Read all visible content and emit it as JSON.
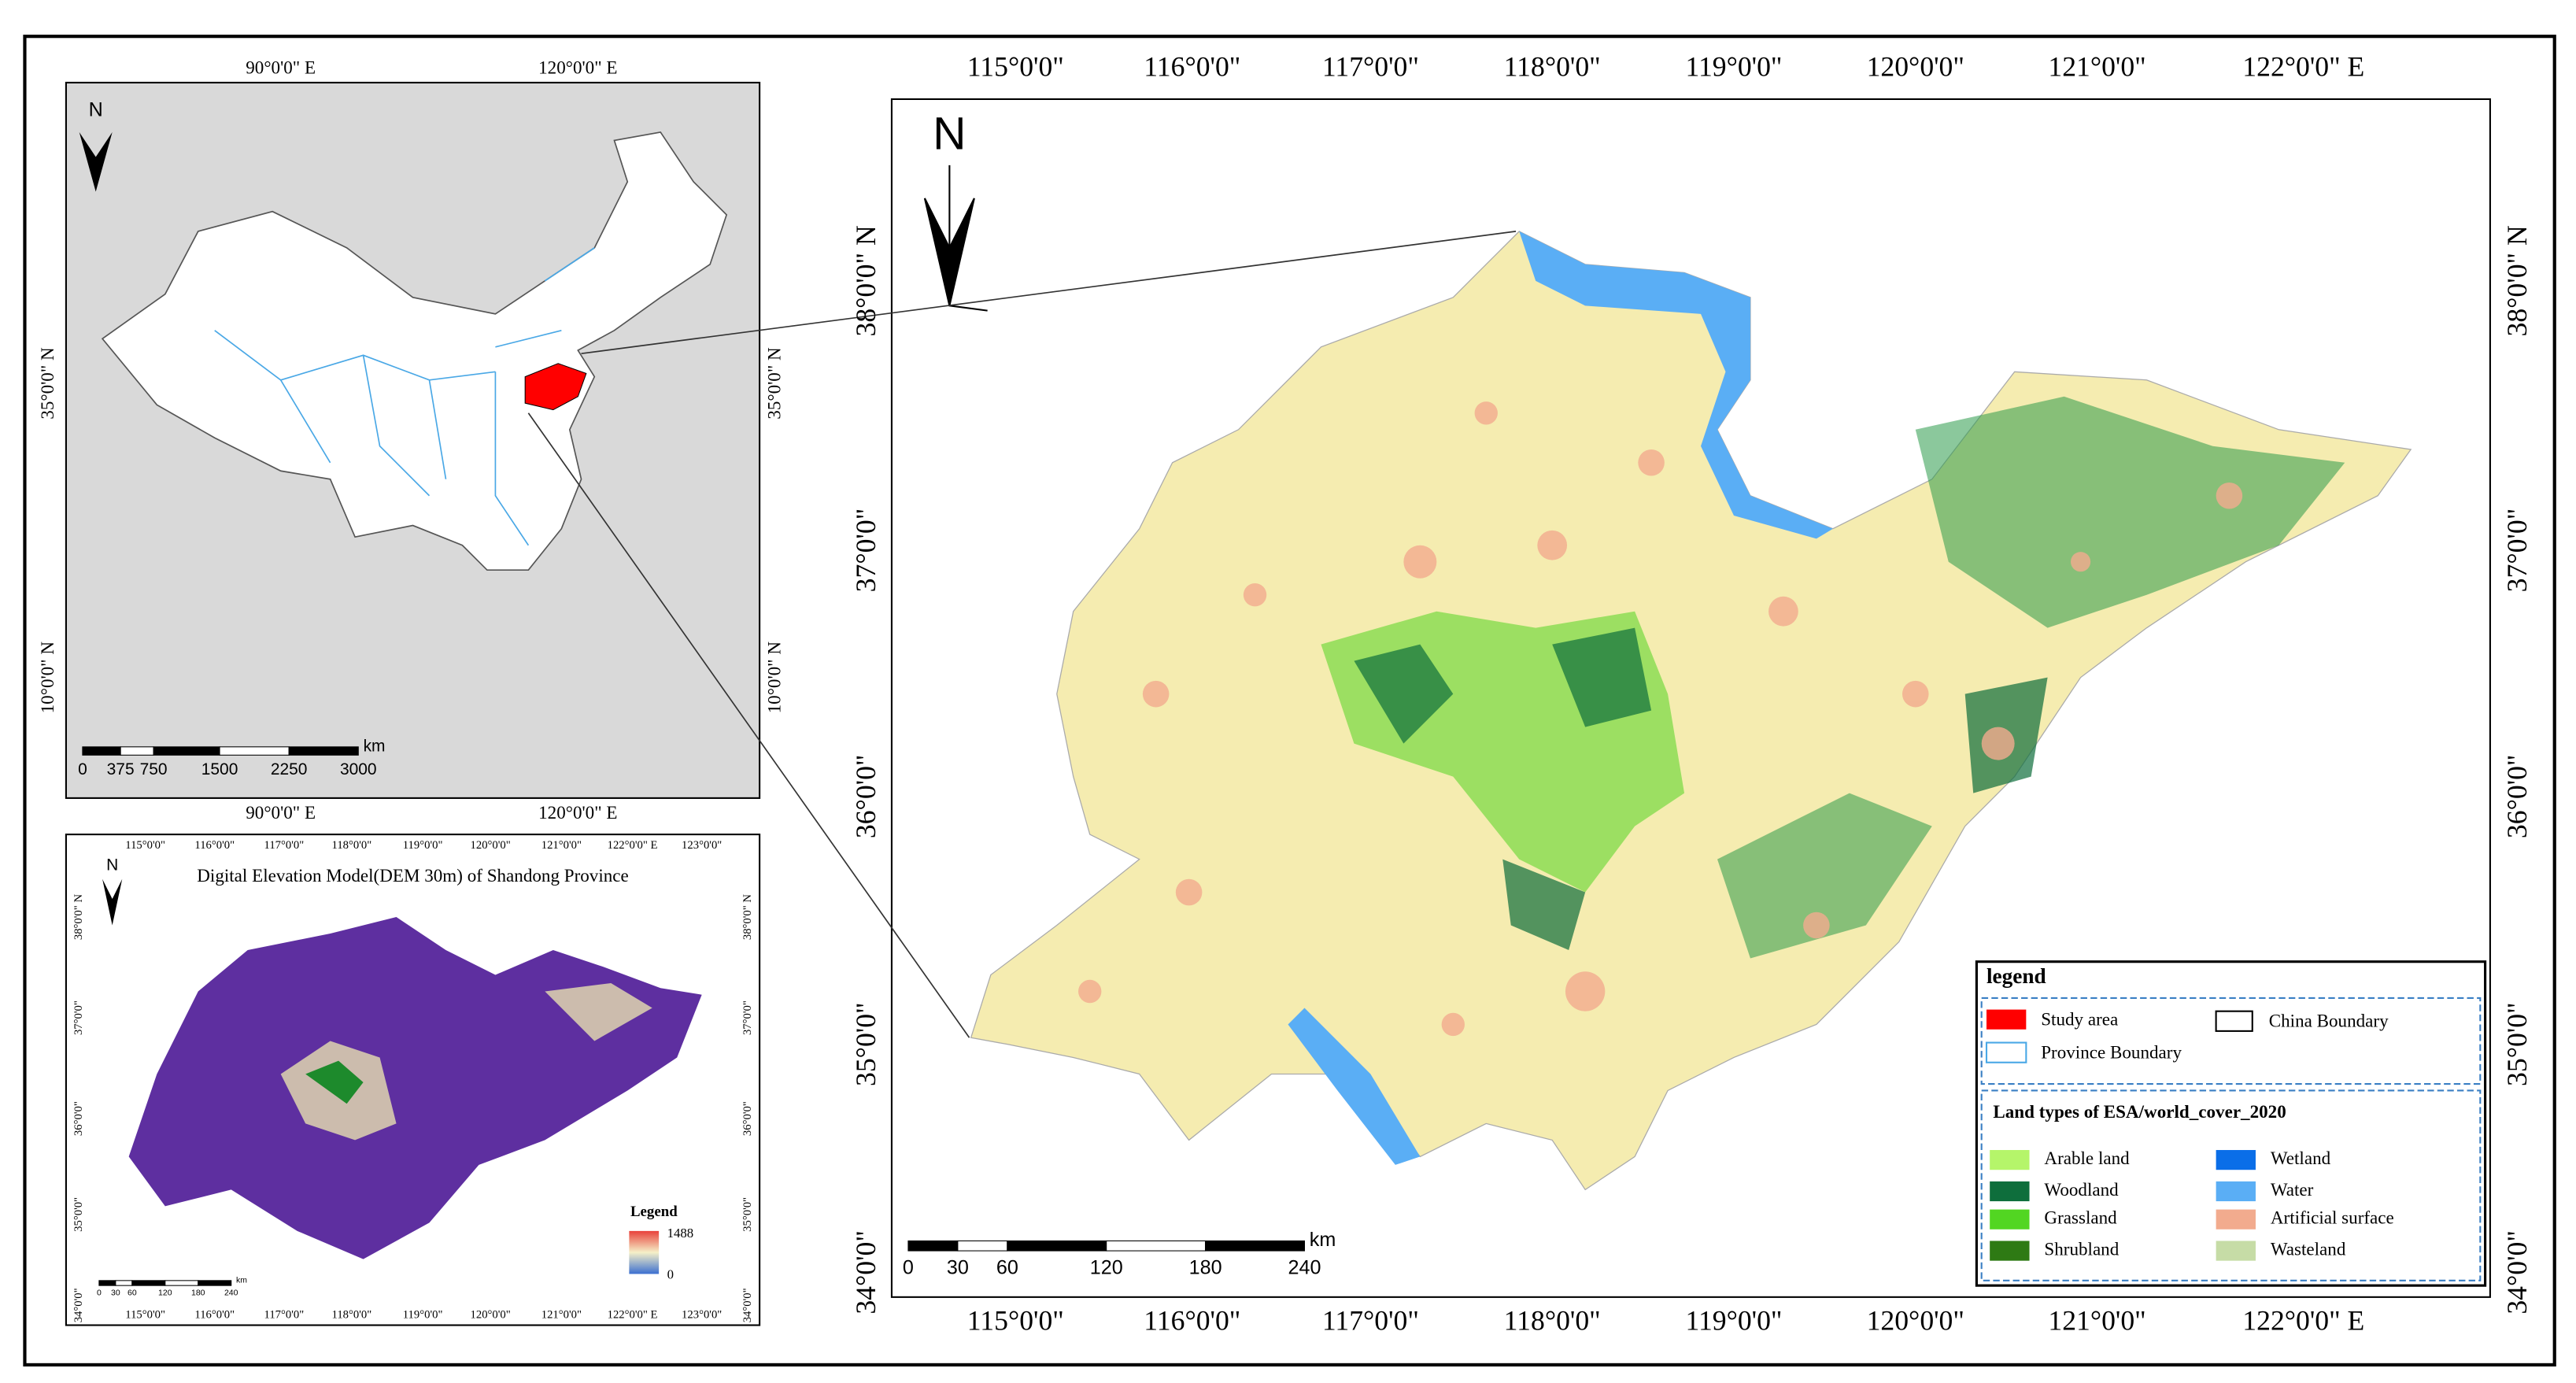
{
  "china_map": {
    "north": "N",
    "top_labels": [
      "90°0'0\" E",
      "120°0'0\" E"
    ],
    "bottom_labels": [
      "90°0'0\" E",
      "120°0'0\" E"
    ],
    "left_labels": [
      "35°0'0\" N",
      "10°0'0\" N"
    ],
    "right_labels": [
      "35°0'0\" N",
      "10°0'0\" N"
    ],
    "scale_labels": [
      "0",
      "375",
      "750",
      "1500",
      "2250",
      "3000"
    ],
    "scale_unit": "km"
  },
  "dem_map": {
    "north": "N",
    "title": "Digital  Elevation Model(DEM 30m) of Shandong Province",
    "top_labels": [
      "115°0'0\"",
      "116°0'0\"",
      "117°0'0\"",
      "118°0'0\"",
      "119°0'0\"",
      "120°0'0\"",
      "121°0'0\"",
      "122°0'0\" E",
      "123°0'0\""
    ],
    "bottom_labels": [
      "115°0'0\"",
      "116°0'0\"",
      "117°0'0\"",
      "118°0'0\"",
      "119°0'0\"",
      "120°0'0\"",
      "121°0'0\"",
      "122°0'0\" E",
      "123°0'0\""
    ],
    "left_labels": [
      "38°0'0\" N",
      "37°0'0\"",
      "36°0'0\"",
      "35°0'0\"",
      "34°0'0\""
    ],
    "right_labels": [
      "38°0'0\" N",
      "37°0'0\"",
      "36°0'0\"",
      "35°0'0\"",
      "34°0'0\""
    ],
    "legend_title": "Legend",
    "legend_max": "1488",
    "legend_min": "0",
    "scale_labels": [
      "0",
      "30",
      "60",
      "120",
      "180",
      "240"
    ],
    "scale_unit": "km"
  },
  "main_map": {
    "north": "N",
    "top_labels": [
      "115°0'0\"",
      "116°0'0\"",
      "117°0'0\"",
      "118°0'0\"",
      "119°0'0\"",
      "120°0'0\"",
      "121°0'0\"",
      "122°0'0\" E"
    ],
    "bottom_labels": [
      "115°0'0\"",
      "116°0'0\"",
      "117°0'0\"",
      "118°0'0\"",
      "119°0'0\"",
      "120°0'0\"",
      "121°0'0\"",
      "122°0'0\" E"
    ],
    "left_labels": [
      "38°0'0\" N",
      "37°0'0\"",
      "36°0'0\"",
      "35°0'0\"",
      "34°0'0\""
    ],
    "right_labels": [
      "38°0'0\" N",
      "37°0'0\"",
      "36°0'0\"",
      "35°0'0\"",
      "34°0'0\""
    ],
    "scale_labels": [
      "0",
      "30",
      "60",
      "120",
      "180",
      "240"
    ],
    "scale_unit": "km"
  },
  "legend": {
    "title": "legend",
    "study_area": "Study area",
    "china_boundary": "China Boundary",
    "province_boundary": "Province Boundary",
    "land_types_title": "Land types of  ESA/world_cover_2020",
    "classes": [
      {
        "name": "Arable land",
        "color": "#b5f56a"
      },
      {
        "name": "Woodland",
        "color": "#0e6e3c"
      },
      {
        "name": "Grassland",
        "color": "#52d622"
      },
      {
        "name": "Shrubland",
        "color": "#2e7a14"
      },
      {
        "name": "Wetland",
        "color": "#0a6ee8"
      },
      {
        "name": "Water",
        "color": "#5aaef5"
      },
      {
        "name": "Artificial surface",
        "color": "#f2ab8e"
      },
      {
        "name": "Wasteland",
        "color": "#c6dca6"
      }
    ]
  }
}
